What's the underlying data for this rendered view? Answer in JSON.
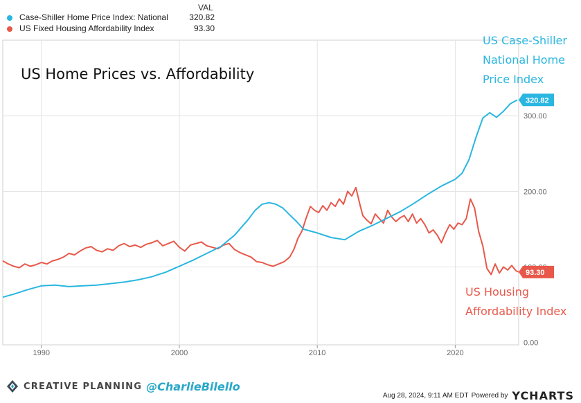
{
  "legend": {
    "header": "VAL",
    "items": [
      {
        "name": "Case-Shiller Home Price Index: National",
        "value": "320.82",
        "color": "#29b6e0"
      },
      {
        "name": "US Fixed Housing Affordability Index",
        "value": "93.30",
        "color": "#e8584a"
      }
    ]
  },
  "footer": {
    "brand": "CREATIVE PLANNING",
    "handle": "@CharlieBilello",
    "timestamp": "Aug 28, 2024, 9:11 AM EDT",
    "powered_by": "Powered by",
    "provider": "YCHARTS"
  },
  "chart_data": {
    "type": "line",
    "title": "US Home Prices vs. Affordability",
    "xlabel": "",
    "ylabel": "",
    "xlim": [
      1987.2,
      2024.6
    ],
    "ylim": [
      -3,
      400
    ],
    "x_ticks": [
      1990,
      2000,
      2010,
      2020
    ],
    "y_ticks": [
      0,
      100,
      200,
      300
    ],
    "y_tick_labels": [
      "0.00",
      "100.00",
      "200.00",
      "300.00"
    ],
    "grid": true,
    "annotations": [
      {
        "text": "US Case-Shiller National Home Price Index",
        "series": "Case-Shiller Home Price Index: National",
        "color": "#29b6e0"
      },
      {
        "text": "US Housing Affordability Index",
        "series": "US Fixed Housing Affordability Index",
        "color": "#e8584a"
      }
    ],
    "series": [
      {
        "name": "Case-Shiller Home Price Index: National",
        "color": "#29b6e0",
        "last_value": "320.82",
        "x": [
          1987.2,
          1988,
          1989,
          1990,
          1991,
          1992,
          1993,
          1994,
          1995,
          1996,
          1997,
          1998,
          1999,
          2000,
          2001,
          2002,
          2003,
          2004,
          2005,
          2005.5,
          2006,
          2006.5,
          2007,
          2007.5,
          2008,
          2008.5,
          2009,
          2010,
          2011,
          2012,
          2013,
          2014,
          2015,
          2016,
          2017,
          2018,
          2019,
          2020,
          2020.5,
          2021,
          2021.5,
          2022,
          2022.5,
          2023,
          2023.5,
          2024,
          2024.5
        ],
        "y": [
          60,
          64,
          70,
          75,
          76,
          74,
          75,
          76,
          78,
          80,
          83,
          87,
          93,
          101,
          109,
          118,
          127,
          142,
          163,
          175,
          183,
          185,
          183,
          178,
          169,
          160,
          150,
          145,
          139,
          136,
          147,
          155,
          164,
          173,
          184,
          196,
          207,
          216,
          224,
          242,
          271,
          297,
          304,
          298,
          306,
          316,
          321
        ]
      },
      {
        "name": "US Fixed Housing Affordability Index",
        "color": "#e8584a",
        "last_value": "93.30",
        "x": [
          1987.2,
          1987.6,
          1988,
          1988.4,
          1988.8,
          1989.2,
          1989.6,
          1990,
          1990.4,
          1990.8,
          1991.2,
          1991.6,
          1992,
          1992.4,
          1992.8,
          1993.2,
          1993.6,
          1994,
          1994.4,
          1994.8,
          1995.2,
          1995.6,
          1996,
          1996.4,
          1996.8,
          1997.2,
          1997.6,
          1998,
          1998.4,
          1998.8,
          1999.2,
          1999.6,
          2000,
          2000.4,
          2000.8,
          2001.2,
          2001.6,
          2002,
          2002.4,
          2002.8,
          2003.2,
          2003.6,
          2004,
          2004.4,
          2004.8,
          2005.2,
          2005.6,
          2006,
          2006.4,
          2006.8,
          2007.2,
          2007.6,
          2008,
          2008.3,
          2008.6,
          2008.9,
          2009.2,
          2009.5,
          2009.8,
          2010.1,
          2010.4,
          2010.7,
          2011,
          2011.3,
          2011.6,
          2011.9,
          2012.2,
          2012.5,
          2012.8,
          2013.1,
          2013.3,
          2013.6,
          2013.9,
          2014.2,
          2014.5,
          2014.8,
          2015.1,
          2015.4,
          2015.7,
          2016,
          2016.3,
          2016.6,
          2016.9,
          2017.2,
          2017.5,
          2017.8,
          2018.1,
          2018.4,
          2018.7,
          2019,
          2019.3,
          2019.6,
          2019.9,
          2020.2,
          2020.5,
          2020.8,
          2021.1,
          2021.4,
          2021.7,
          2022,
          2022.3,
          2022.6,
          2022.9,
          2023.2,
          2023.5,
          2023.8,
          2024.1,
          2024.4,
          2024.6
        ],
        "y": [
          108,
          104,
          101,
          99,
          104,
          101,
          103,
          106,
          104,
          108,
          110,
          113,
          118,
          116,
          121,
          125,
          127,
          122,
          120,
          124,
          122,
          128,
          131,
          127,
          129,
          126,
          130,
          132,
          135,
          128,
          131,
          134,
          126,
          121,
          129,
          131,
          133,
          128,
          126,
          124,
          129,
          131,
          123,
          119,
          116,
          113,
          107,
          106,
          103,
          101,
          104,
          107,
          113,
          123,
          138,
          148,
          165,
          180,
          175,
          172,
          181,
          175,
          185,
          180,
          190,
          183,
          200,
          194,
          205,
          182,
          168,
          162,
          157,
          170,
          164,
          158,
          175,
          166,
          160,
          165,
          168,
          160,
          170,
          158,
          164,
          156,
          145,
          149,
          142,
          132,
          145,
          156,
          150,
          158,
          156,
          164,
          190,
          178,
          147,
          128,
          98,
          90,
          104,
          92,
          100,
          96,
          102,
          95,
          93.3
        ]
      }
    ]
  }
}
